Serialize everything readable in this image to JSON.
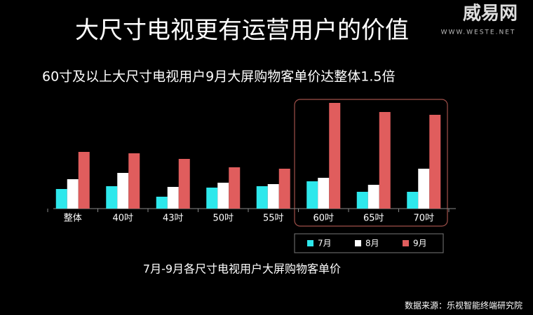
{
  "logo": {
    "name": "威易网",
    "url": "WWW.WESTE.NET"
  },
  "chart_data": {
    "type": "bar",
    "title": "大尺寸电视更有运营用户的价值",
    "subtitle": "60寸及以上大尺寸电视用户9月大屏购物客单价达整体1.5倍",
    "caption": "7月-9月各尺寸电视用户大屏购物客单价",
    "source": "数据来源：乐视智能终端研究院",
    "categories": [
      "整体",
      "40吋",
      "43吋",
      "50吋",
      "55吋",
      "60吋",
      "65吋",
      "70吋"
    ],
    "series": [
      {
        "name": "7月",
        "color": "#2ee8ec",
        "values": [
          28,
          32,
          17,
          30,
          32,
          39,
          24,
          24
        ]
      },
      {
        "name": "8月",
        "color": "#ffffff",
        "values": [
          42,
          51,
          31,
          37,
          35,
          44,
          34,
          57
        ]
      },
      {
        "name": "9月",
        "color": "#e05d5d",
        "values": [
          81,
          79,
          71,
          59,
          57,
          151,
          138,
          134
        ]
      }
    ],
    "ylim": [
      0,
      160
    ]
  }
}
